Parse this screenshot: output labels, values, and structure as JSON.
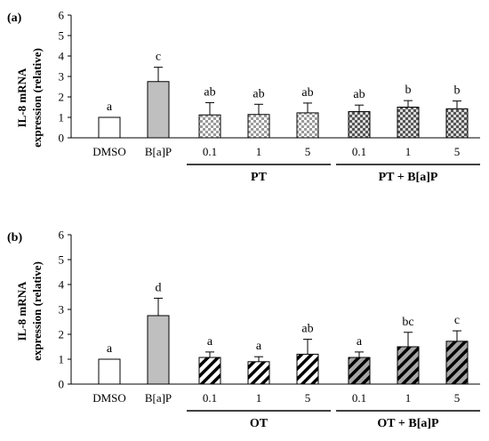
{
  "colors": {
    "control": "#ffffff",
    "bap": "#bfbfbf",
    "treatment": "#ffffff",
    "treatment_bap": "#a6a6a6",
    "stroke": "#000000"
  },
  "chart_data": [
    {
      "type": "bar",
      "panel_label": "(a)",
      "ylabel_line1": "IL-8 mRNA",
      "ylabel_line2": "expression (relative)",
      "ylim": [
        0,
        6
      ],
      "yticks": [
        "0",
        "1",
        "2",
        "3",
        "4",
        "5",
        "6"
      ],
      "grid": false,
      "categories": [
        "DMSO",
        "B[a]P",
        "0.1",
        "1",
        "5",
        "0.1",
        "1",
        "5"
      ],
      "values": [
        1.0,
        2.75,
        1.12,
        1.14,
        1.22,
        1.28,
        1.5,
        1.42
      ],
      "errors": [
        0,
        0.7,
        0.6,
        0.5,
        0.48,
        0.32,
        0.32,
        0.38
      ],
      "letters": [
        "a",
        "c",
        "ab",
        "ab",
        "ab",
        "ab",
        "b",
        "b"
      ],
      "pattern": "checker",
      "groups": [
        {
          "label": "PT",
          "start": 2,
          "end": 4
        },
        {
          "label": "PT + B[a]P",
          "start": 5,
          "end": 7
        }
      ]
    },
    {
      "type": "bar",
      "panel_label": "(b)",
      "ylabel_line1": "IL-8 mRNA",
      "ylabel_line2": "expression (relative)",
      "ylim": [
        0,
        6
      ],
      "yticks": [
        "0",
        "1",
        "2",
        "3",
        "4",
        "5",
        "6"
      ],
      "grid": false,
      "categories": [
        "DMSO",
        "B[a]P",
        "0.1",
        "1",
        "5",
        "0.1",
        "1",
        "5"
      ],
      "values": [
        1.0,
        2.75,
        1.07,
        0.9,
        1.2,
        1.07,
        1.5,
        1.72
      ],
      "errors": [
        0,
        0.7,
        0.22,
        0.2,
        0.6,
        0.22,
        0.58,
        0.42
      ],
      "letters": [
        "a",
        "d",
        "a",
        "a",
        "ab",
        "a",
        "bc",
        "c"
      ],
      "pattern": "stripe",
      "groups": [
        {
          "label": "OT",
          "start": 2,
          "end": 4
        },
        {
          "label": "OT + B[a]P",
          "start": 5,
          "end": 7
        }
      ]
    }
  ]
}
